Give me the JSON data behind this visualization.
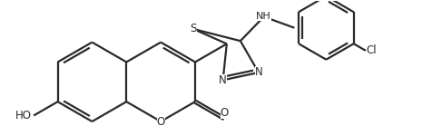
{
  "bg_color": "#ffffff",
  "line_color": "#2a2a2a",
  "line_width": 1.6,
  "font_size": 8.5,
  "figsize": [
    4.87,
    1.5
  ],
  "dpi": 100,
  "xlim": [
    0.0,
    9.8
  ],
  "ylim": [
    -0.3,
    3.1
  ]
}
